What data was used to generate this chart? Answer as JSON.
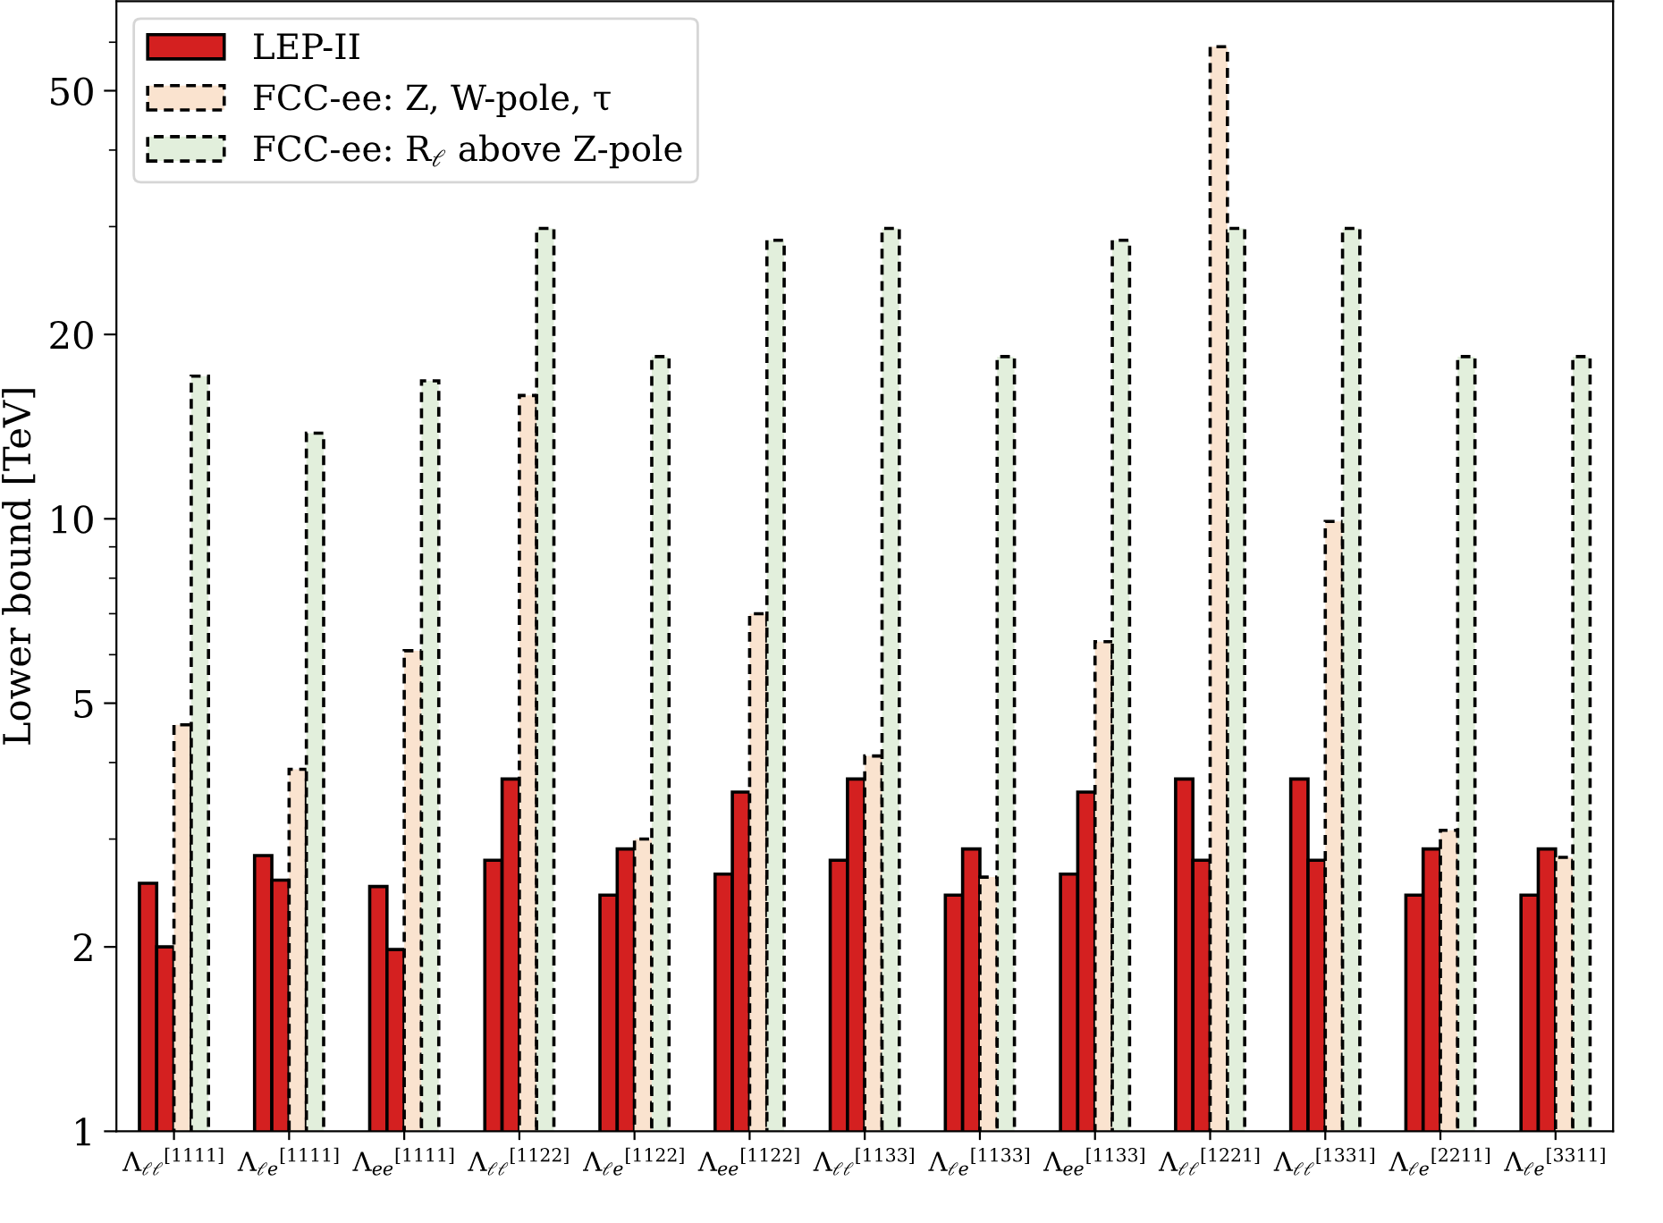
{
  "chart_data": {
    "type": "bar",
    "ylabel": "Lower bound [TeV]",
    "categories": [
      "Λ$_{ℓℓ}$$^{[1111]}$",
      "Λ$_{ℓe}$$^{[1111]}$",
      "Λ$_{ee}$$^{[1111]}$",
      "Λ$_{ℓℓ}$$^{[1122]}$",
      "Λ$_{ℓe}$$^{[1122]}$",
      "Λ$_{ee}$$^{[1122]}$",
      "Λ$_{ℓℓ}$$^{[1133]}$",
      "Λ$_{ℓe}$$^{[1133]}$",
      "Λ$_{ee}$$^{[1133]}$",
      "Λ$_{ℓℓ}$$^{[1221]}$",
      "Λ$_{ℓℓ}$$^{[1331]}$",
      "Λ$_{ℓe}$$^{[2211]}$",
      "Λ$_{ℓe}$$^{[3311]}$"
    ],
    "series": [
      {
        "name": "LEP-II",
        "color": "#d42020",
        "line_style": "solid",
        "values": [
          2.54,
          2.82,
          2.51,
          2.77,
          2.43,
          2.63,
          2.77,
          2.43,
          2.63,
          3.76,
          3.76,
          2.43,
          2.43
        ]
      },
      {
        "color": "#d42020",
        "line_style": "solid",
        "values": [
          2.0,
          2.57,
          1.98,
          3.76,
          2.89,
          3.58,
          3.76,
          2.89,
          3.58,
          2.77,
          2.77,
          2.89,
          2.89
        ]
      },
      {
        "name": "FCC-ee: Z, W-pole, τ",
        "color": "#fae3cf",
        "line_style": "dashed",
        "values": [
          4.61,
          3.9,
          6.09,
          15.9,
          3.0,
          7.0,
          4.1,
          2.6,
          6.3,
          59.0,
          9.9,
          3.1,
          2.8
        ]
      },
      {
        "name": "FCC-ee: R$_{ℓ}$ above Z-pole",
        "color": "#e2efdc",
        "line_style": "dashed",
        "values": [
          17.1,
          13.8,
          16.8,
          29.8,
          18.4,
          28.5,
          29.8,
          18.4,
          28.5,
          29.8,
          29.8,
          18.4,
          18.4
        ]
      }
    ],
    "log": "y",
    "ylim": [
      1,
      70
    ],
    "yticks": [
      1,
      2,
      {
        "value": 3,
        "label": null
      },
      {
        "value": 4,
        "label": null
      },
      5,
      {
        "value": 6,
        "label": null
      },
      {
        "value": 7,
        "label": null
      },
      {
        "value": 8,
        "label": null
      },
      {
        "value": 9,
        "label": null
      },
      10,
      20,
      {
        "value": 30,
        "label": null
      },
      {
        "value": 40,
        "label": null
      },
      50,
      {
        "value": 60,
        "label": null
      }
    ],
    "grid": false,
    "legend": "top left"
  }
}
